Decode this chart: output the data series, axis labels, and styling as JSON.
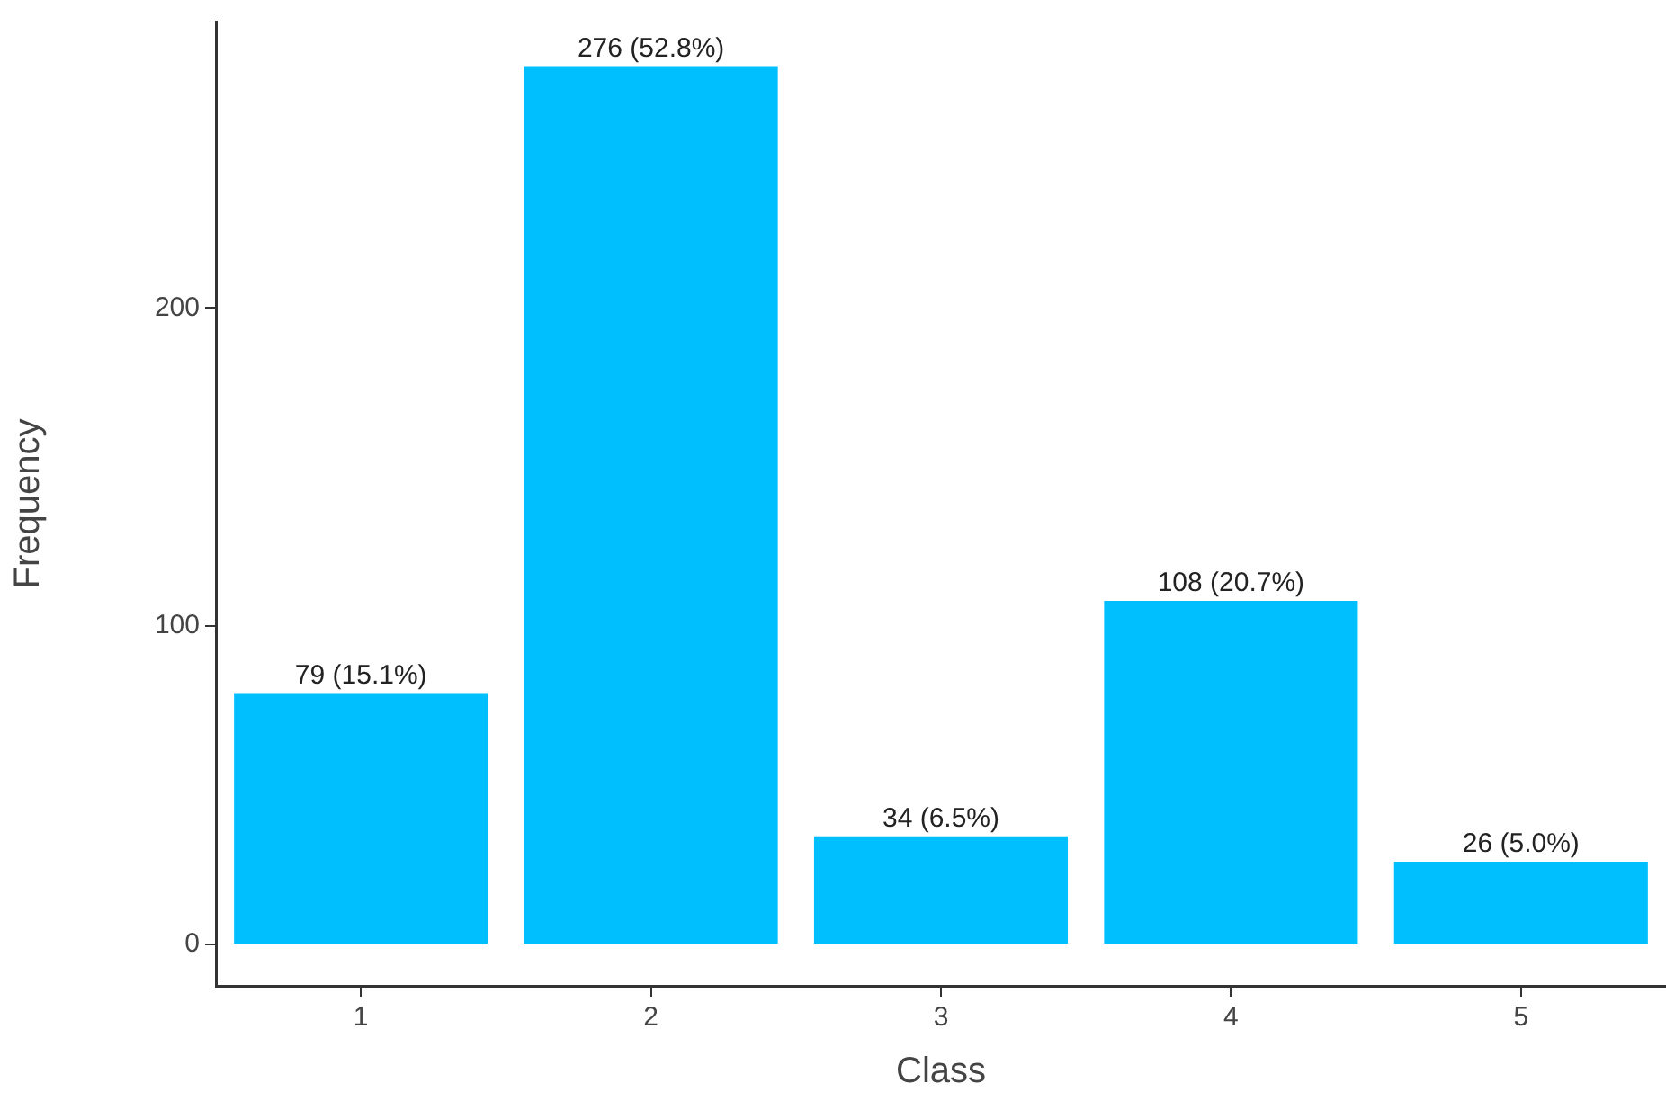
{
  "chart_data": {
    "type": "bar",
    "xlabel": "Class",
    "ylabel": "Frequency",
    "categories": [
      "1",
      "2",
      "3",
      "4",
      "5"
    ],
    "values": [
      79,
      276,
      34,
      108,
      26
    ],
    "value_labels": [
      "79 (15.1%)",
      "276 (52.8%)",
      "34 (6.5%)",
      "108 (20.7%)",
      "26 (5.0%)"
    ],
    "color": "#00bfff",
    "ylim": [
      -13,
      290
    ],
    "yticks": [
      0,
      100,
      200
    ],
    "grid": false,
    "legend": false
  }
}
